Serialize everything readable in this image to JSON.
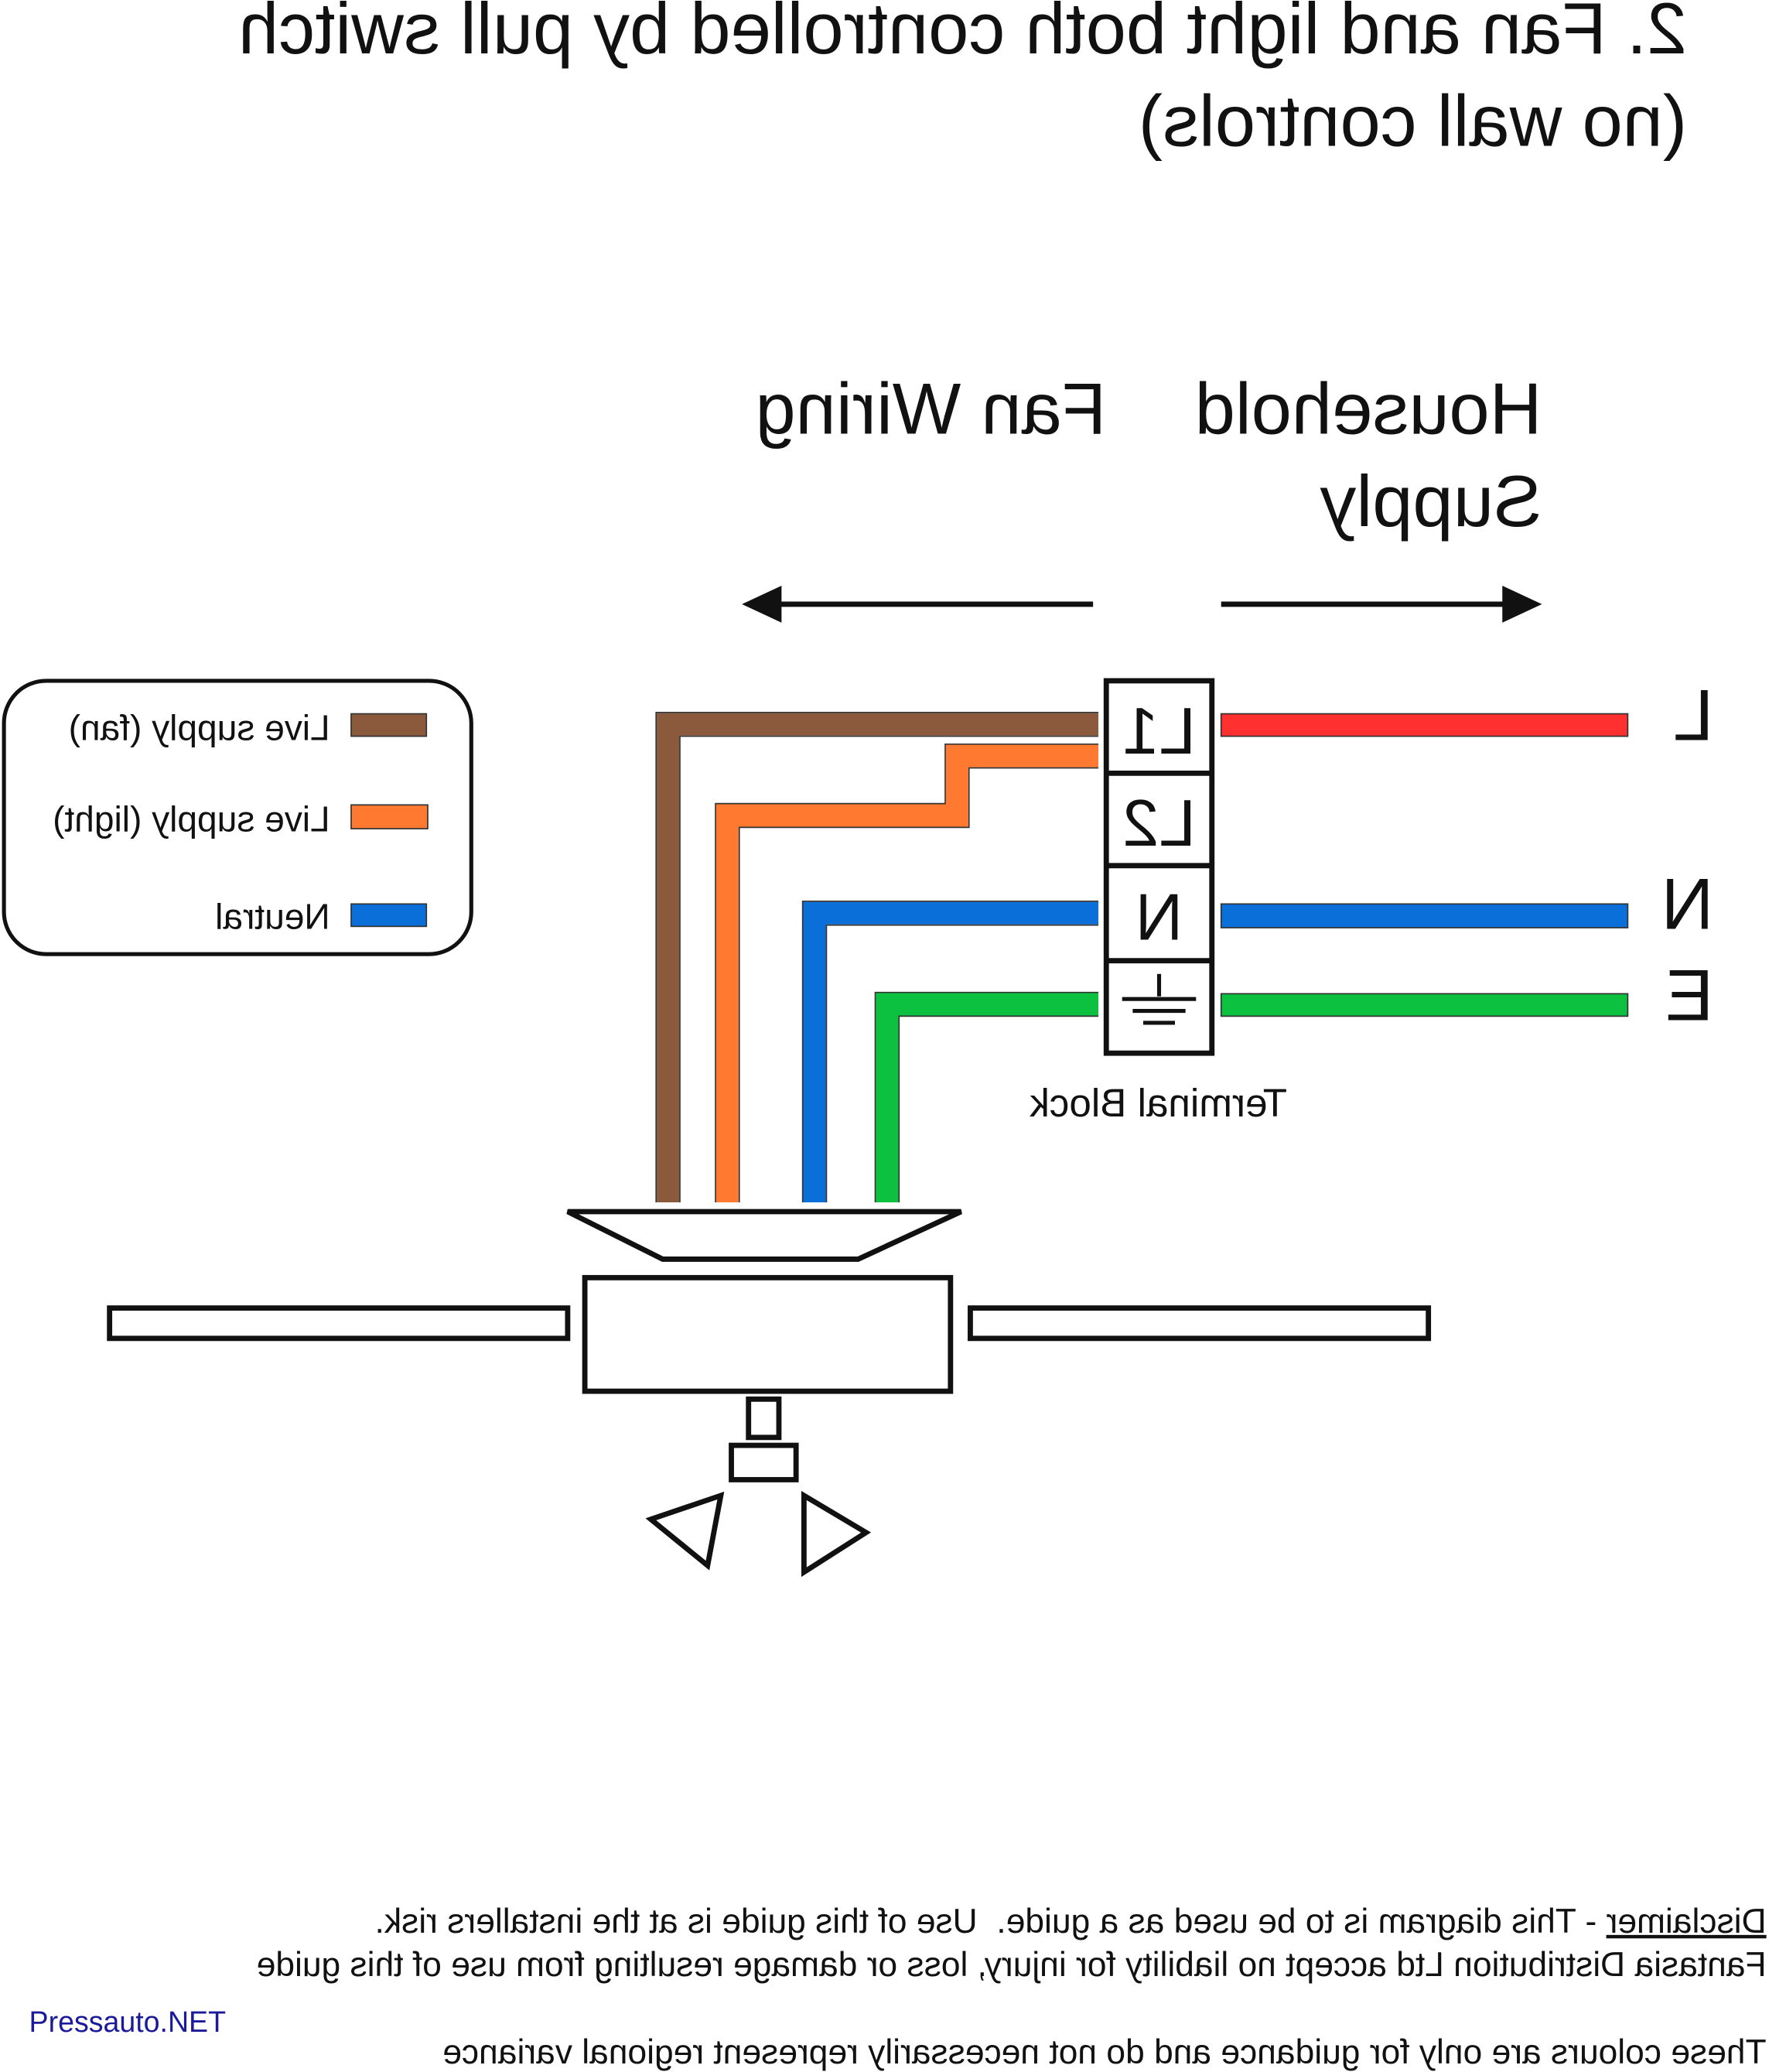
{
  "title": {
    "line1": "2. Fan and light both controlled by pull switch",
    "line2": "(no wall controls)"
  },
  "headings": {
    "household_line1": "Household",
    "household_line2": "Supply",
    "fan_wiring": "Fan Wiring"
  },
  "legend": {
    "items": [
      {
        "label": "Live supply (fan)",
        "color": "#8b5a3c"
      },
      {
        "label": "Live supply (light)",
        "color": "#ff7a30"
      },
      {
        "label": "Neutral",
        "color": "#0a6fd8"
      }
    ]
  },
  "terminal_block": {
    "label": "Terminal Block",
    "terminals": [
      "L1",
      "L2",
      "N"
    ],
    "earth_icon": "earth-ground-icon"
  },
  "supply_labels": [
    "L",
    "N",
    "E"
  ],
  "wire_colors": {
    "live": "#ff3030",
    "neutral": "#0a6fd8",
    "earth": "#0cc040",
    "fan": "#8b5a3c",
    "light": "#ff7a30"
  },
  "footer": {
    "disclaimer_word": "Disclaimer",
    "line1_rest": " - This diagram is to be used as a guide.  Use of this guide is at the installers risk.",
    "line2": "Fantasia Distribution Ltd accept no liability for injury, loss or damage resulting from use of this guide",
    "line3": "These colours are only for guidance and do not necessarily represent regional variance"
  },
  "watermark": "Pressauto.NET",
  "note": "diagram is horizontally mirrored"
}
